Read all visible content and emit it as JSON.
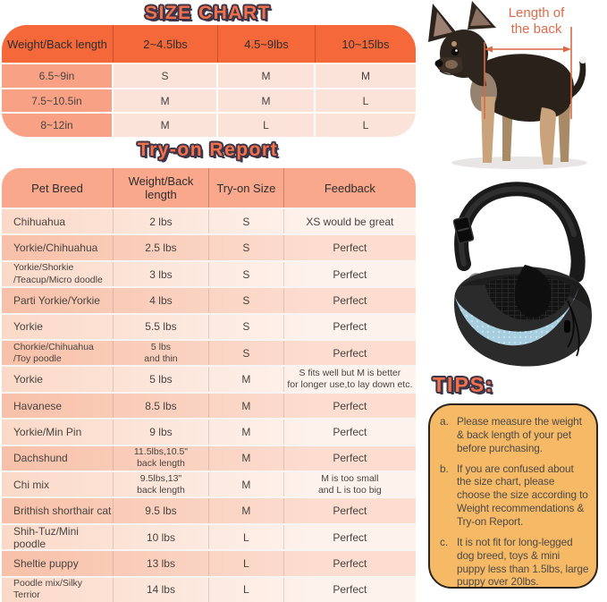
{
  "size_chart": {
    "title": "SIZE CHART",
    "headers": [
      "Weight/Back length",
      "2~4.5lbs",
      "4.5~9lbs",
      "10~15lbs"
    ],
    "rows": [
      [
        "6.5~9in",
        "S",
        "M",
        "M"
      ],
      [
        "7.5~10.5in",
        "M",
        "M",
        "L"
      ],
      [
        "8~12in",
        "M",
        "L",
        "L"
      ]
    ]
  },
  "dog_figure": {
    "annotation": [
      "Length of",
      "the back"
    ]
  },
  "tryon_report": {
    "title": "Try-on Report",
    "headers": [
      "Pet Breed",
      "Weight/Back length",
      "Try-on Size",
      "Feedback"
    ],
    "rows": [
      [
        "Chihuahua",
        "2 lbs",
        "S",
        "XS would be great"
      ],
      [
        "Yorkie/Chihuahua",
        "2.5 lbs",
        "S",
        "Perfect"
      ],
      [
        "Yorkie/Shorkie\n/Teacup/Micro doodle",
        "3 lbs",
        "S",
        "Perfect"
      ],
      [
        "Parti Yorkie/Yorkie",
        "4 lbs",
        "S",
        "Perfect"
      ],
      [
        "Yorkie",
        "5.5 lbs",
        "S",
        "Perfect"
      ],
      [
        "Chorkie/Chihuahua\n/Toy poodle",
        "5 lbs\nand thin",
        "S",
        "Perfect"
      ],
      [
        "Yorkie",
        "5 lbs",
        "M",
        "S fits well but M is better\nfor longer use,to lay down etc."
      ],
      [
        "Havanese",
        "8.5 lbs",
        "M",
        "Perfect"
      ],
      [
        "Yorkie/Min Pin",
        "9 lbs",
        "M",
        "Perfect"
      ],
      [
        "Dachshund",
        "11.5lbs,10.5\"\nback length",
        "M",
        "Perfect"
      ],
      [
        "Chi mix",
        "9.5lbs,13\"\nback length",
        "M",
        "M is too small\nand L is too big"
      ],
      [
        "Brithish shorthair cat",
        "9.5 lbs",
        "M",
        "Perfect"
      ],
      [
        "Shih-Tuz/Mini poodle",
        "10 lbs",
        "L",
        "Perfect"
      ],
      [
        "Sheltie puppy",
        "13 lbs",
        "L",
        "Perfect"
      ],
      [
        "Poodle mix/Silky\nTerrior",
        "14 lbs",
        "L",
        "Perfect"
      ]
    ]
  },
  "tips": {
    "title": "TIPS:",
    "items": [
      {
        "label": "a.",
        "text": "Please measure the weight & back length of your pet before purchasing."
      },
      {
        "label": "b.",
        "text": "If you are confused about the size chart, please choose the size according to Weight recommendations & Try-on Report."
      },
      {
        "label": "c.",
        "text": "It is not fit for long-legged dog breed, toys & mini puppy less than 1.5lbs, large puppy over 20lbs."
      }
    ]
  },
  "figures": {
    "dog": "chihuahua-back-length-photo",
    "bag": "pet-sling-carrier-photo"
  },
  "colors": {
    "header_orange": "#f4683a",
    "salmon": "#f9a184",
    "tryon_header": "#f9a88c",
    "light_cell": "#fbe3d9",
    "tips_bg": "#f6b965",
    "annotation_text": "#dd6b4a",
    "title_fill": "#f2704a",
    "title_outline": "#3f3548",
    "bag_mesh_blue": "#a6cede"
  }
}
